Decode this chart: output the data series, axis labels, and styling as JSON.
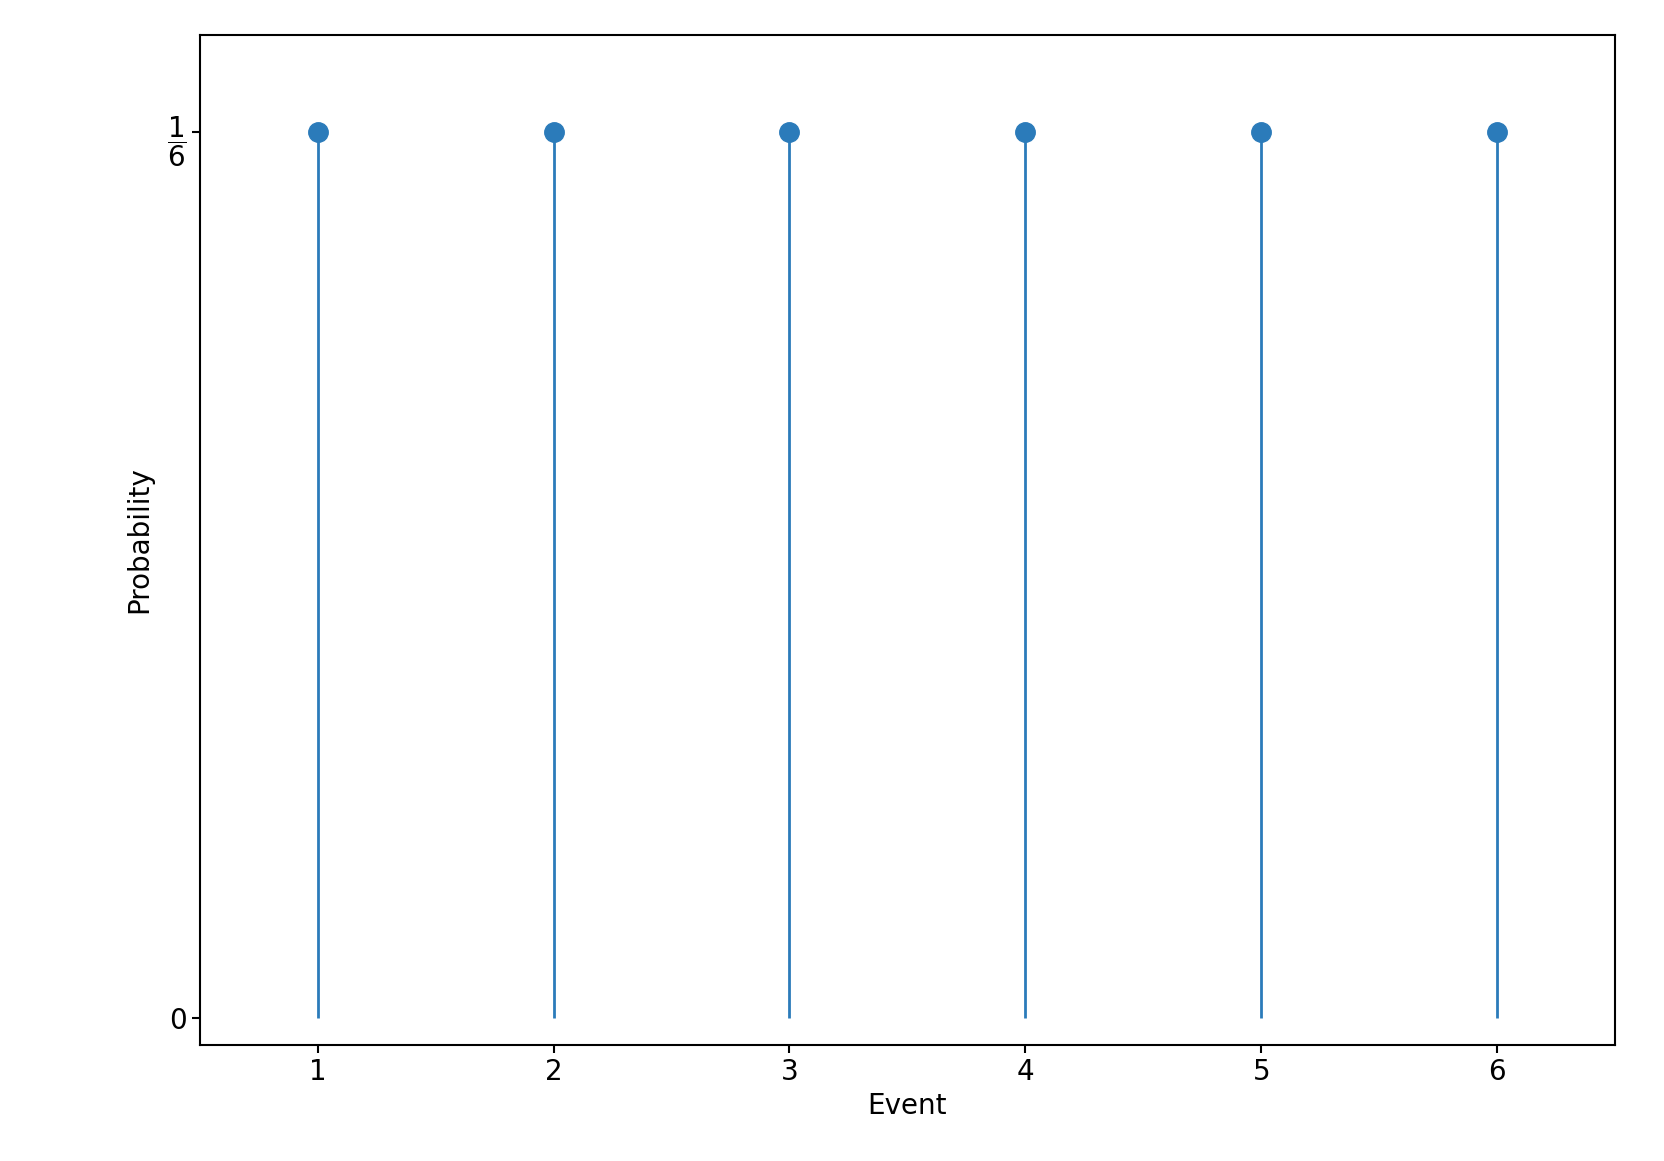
{
  "x": [
    1,
    2,
    3,
    4,
    5,
    6
  ],
  "y": [
    0.16666666666666666,
    0.16666666666666666,
    0.16666666666666666,
    0.16666666666666666,
    0.16666666666666666,
    0.16666666666666666
  ],
  "color": "#2b7bba",
  "markersize": 14,
  "linewidth": 2.0,
  "xlabel": "Event",
  "ylabel": "Probability",
  "xlim": [
    0.5,
    6.5
  ],
  "ylim": [
    -0.005,
    0.185
  ],
  "xticks": [
    1,
    2,
    3,
    4,
    5,
    6
  ],
  "yticks": [
    0,
    0.16666666666666666
  ],
  "xlabel_fontsize": 20,
  "ylabel_fontsize": 20,
  "tick_fontsize": 20,
  "background_color": "#ffffff"
}
